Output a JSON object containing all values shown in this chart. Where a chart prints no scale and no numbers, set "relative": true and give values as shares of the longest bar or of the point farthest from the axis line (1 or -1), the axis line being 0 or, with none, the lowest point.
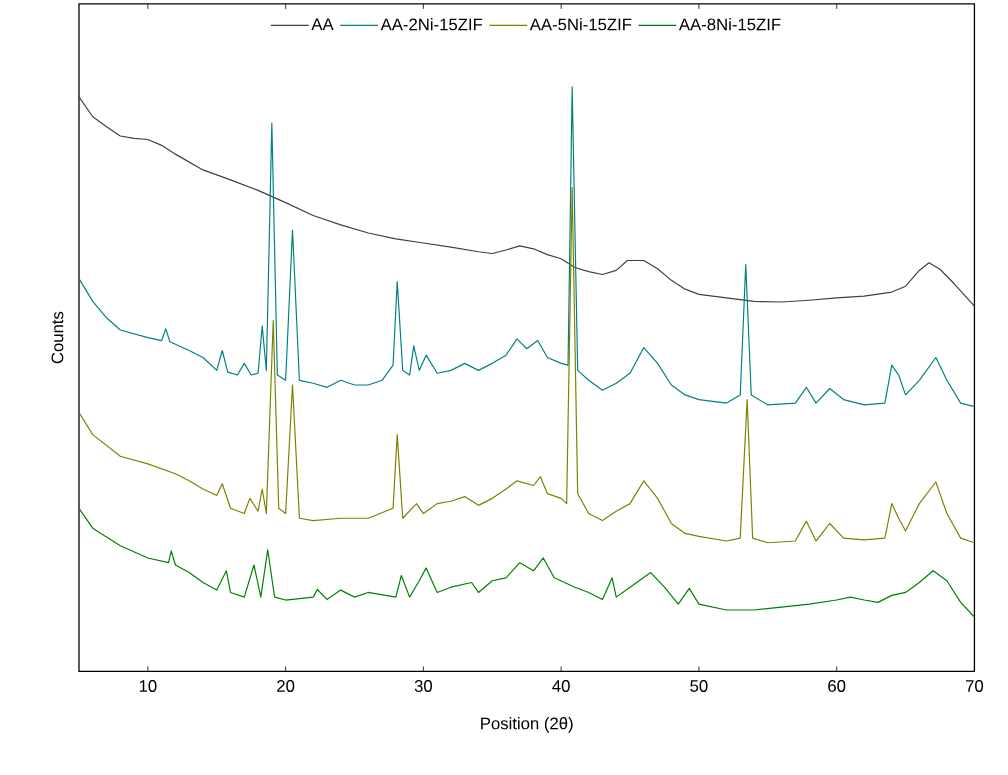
{
  "chart_data": {
    "type": "line",
    "xlabel": "Position (2θ)",
    "ylabel": "Counts",
    "relative": true,
    "xlim": [
      5,
      70
    ],
    "xticks": [
      10,
      20,
      30,
      40,
      50,
      60,
      70
    ],
    "legend": "top",
    "grid": false,
    "marker": "none",
    "line_style": "solid",
    "series": [
      {
        "name": "AA",
        "color": "#404040",
        "x": [
          5,
          6,
          7,
          8,
          9,
          10,
          11,
          12,
          14,
          16,
          18,
          20,
          22,
          24,
          26,
          28,
          30,
          32,
          34,
          35,
          36,
          37,
          38,
          39,
          40,
          41,
          42,
          43,
          44,
          44.8,
          46,
          47,
          48,
          49,
          50,
          52,
          54,
          56,
          58,
          60,
          62,
          64,
          65,
          66,
          66.7,
          67.5,
          68.5,
          70
        ],
        "values": [
          0.983,
          0.949,
          0.932,
          0.916,
          0.912,
          0.91,
          0.9,
          0.885,
          0.858,
          0.841,
          0.823,
          0.802,
          0.78,
          0.764,
          0.75,
          0.74,
          0.733,
          0.726,
          0.718,
          0.715,
          0.721,
          0.728,
          0.723,
          0.713,
          0.706,
          0.691,
          0.684,
          0.679,
          0.686,
          0.703,
          0.703,
          0.689,
          0.669,
          0.654,
          0.645,
          0.639,
          0.633,
          0.632,
          0.635,
          0.639,
          0.642,
          0.649,
          0.659,
          0.686,
          0.699,
          0.688,
          0.664,
          0.625
        ]
      },
      {
        "name": "AA-2Ni-15ZIF",
        "color": "#008080",
        "x": [
          5,
          6,
          7,
          8,
          10,
          11,
          11.3,
          11.6,
          13,
          14,
          15,
          15.4,
          15.8,
          16.5,
          17,
          17.5,
          18,
          18.3,
          18.6,
          19.0,
          19.4,
          20,
          20.5,
          21,
          22,
          23,
          24,
          25,
          26,
          27,
          27.8,
          28.1,
          28.5,
          29,
          29.3,
          29.7,
          30.2,
          31,
          32,
          33,
          34,
          35,
          36,
          36.8,
          37.5,
          38.3,
          39,
          40,
          40.5,
          40.8,
          41.2,
          42,
          43,
          44,
          45,
          46,
          47,
          48,
          49,
          50,
          52,
          53,
          53.4,
          53.8,
          55,
          57,
          57.8,
          58.5,
          59.5,
          60.5,
          62,
          63.5,
          64,
          64.5,
          65,
          66,
          67.2,
          68,
          69,
          70
        ],
        "values": [
          0.672,
          0.633,
          0.605,
          0.584,
          0.571,
          0.566,
          0.586,
          0.564,
          0.549,
          0.537,
          0.515,
          0.549,
          0.512,
          0.507,
          0.527,
          0.507,
          0.51,
          0.591,
          0.515,
          0.938,
          0.507,
          0.498,
          0.755,
          0.498,
          0.493,
          0.486,
          0.498,
          0.49,
          0.49,
          0.498,
          0.524,
          0.667,
          0.515,
          0.507,
          0.557,
          0.515,
          0.541,
          0.51,
          0.515,
          0.527,
          0.515,
          0.527,
          0.541,
          0.569,
          0.552,
          0.566,
          0.537,
          0.527,
          0.524,
          1.0,
          0.515,
          0.498,
          0.481,
          0.493,
          0.51,
          0.554,
          0.527,
          0.49,
          0.473,
          0.465,
          0.459,
          0.473,
          0.696,
          0.473,
          0.456,
          0.459,
          0.486,
          0.459,
          0.484,
          0.465,
          0.456,
          0.459,
          0.524,
          0.507,
          0.473,
          0.498,
          0.537,
          0.498,
          0.459,
          0.453
        ]
      },
      {
        "name": "AA-5Ni-15ZIF",
        "color": "#808000",
        "x": [
          5,
          6,
          8,
          10,
          12,
          13,
          14,
          15,
          15.4,
          16,
          17,
          17.4,
          18,
          18.3,
          18.6,
          19.1,
          19.5,
          20,
          20.5,
          21,
          22,
          24,
          26,
          27.8,
          28.1,
          28.5,
          29.5,
          30,
          31,
          32,
          33,
          34,
          35,
          36,
          36.8,
          38,
          38.5,
          39,
          40,
          40.4,
          40.8,
          41.2,
          42,
          43,
          44,
          45,
          46,
          47,
          48,
          49,
          50,
          52,
          53,
          53.5,
          53.9,
          55,
          57,
          57.8,
          58.5,
          59.5,
          60.5,
          62,
          63.5,
          64,
          64.5,
          65,
          66,
          67.2,
          68,
          69,
          70
        ],
        "values": [
          0.443,
          0.405,
          0.368,
          0.355,
          0.338,
          0.326,
          0.312,
          0.301,
          0.321,
          0.279,
          0.27,
          0.296,
          0.274,
          0.312,
          0.27,
          0.6,
          0.279,
          0.27,
          0.49,
          0.262,
          0.258,
          0.262,
          0.262,
          0.279,
          0.405,
          0.262,
          0.287,
          0.27,
          0.287,
          0.291,
          0.299,
          0.284,
          0.296,
          0.312,
          0.326,
          0.318,
          0.333,
          0.304,
          0.296,
          0.287,
          0.828,
          0.304,
          0.27,
          0.258,
          0.274,
          0.287,
          0.326,
          0.296,
          0.253,
          0.236,
          0.231,
          0.223,
          0.228,
          0.465,
          0.228,
          0.22,
          0.223,
          0.257,
          0.223,
          0.253,
          0.228,
          0.225,
          0.228,
          0.287,
          0.262,
          0.24,
          0.287,
          0.324,
          0.27,
          0.228,
          0.22
        ]
      },
      {
        "name": "AA-8Ni-15ZIF",
        "color": "#008000",
        "x": [
          5,
          6,
          8,
          10,
          11.5,
          11.7,
          12,
          13,
          14,
          15,
          15.7,
          16,
          17,
          17.7,
          18.2,
          18.7,
          19.2,
          20,
          22,
          22.3,
          23,
          24,
          25,
          26,
          28,
          28.4,
          29,
          29.7,
          30.2,
          31,
          32,
          33.5,
          34,
          35,
          36,
          37,
          38,
          38.7,
          39.5,
          41,
          42,
          43,
          43.7,
          44,
          45,
          46.5,
          47.5,
          48.5,
          49.3,
          50,
          52,
          54,
          56,
          58,
          60,
          61,
          62,
          63,
          64,
          65,
          66,
          67,
          68,
          69,
          70
        ],
        "values": [
          0.279,
          0.245,
          0.215,
          0.194,
          0.186,
          0.206,
          0.182,
          0.169,
          0.152,
          0.139,
          0.172,
          0.135,
          0.127,
          0.182,
          0.127,
          0.208,
          0.127,
          0.122,
          0.127,
          0.14,
          0.123,
          0.139,
          0.127,
          0.135,
          0.127,
          0.164,
          0.127,
          0.155,
          0.177,
          0.135,
          0.144,
          0.152,
          0.135,
          0.155,
          0.16,
          0.186,
          0.172,
          0.194,
          0.16,
          0.144,
          0.135,
          0.123,
          0.16,
          0.127,
          0.144,
          0.169,
          0.144,
          0.115,
          0.142,
          0.115,
          0.105,
          0.105,
          0.11,
          0.115,
          0.122,
          0.127,
          0.122,
          0.118,
          0.13,
          0.135,
          0.152,
          0.172,
          0.155,
          0.118,
          0.093
        ]
      }
    ]
  }
}
